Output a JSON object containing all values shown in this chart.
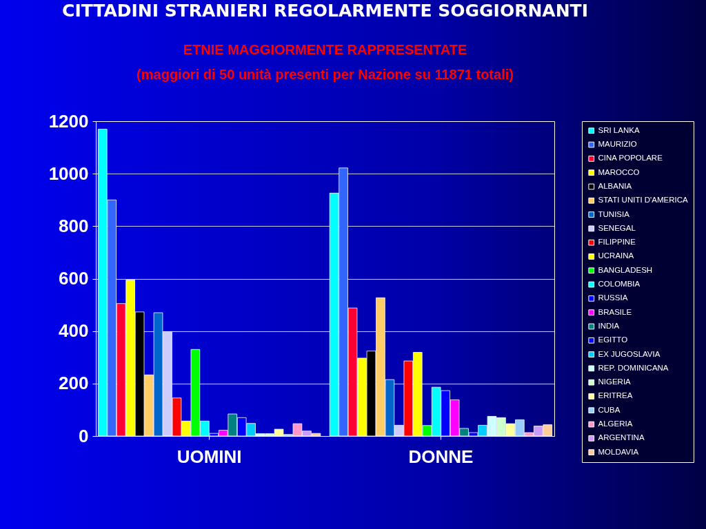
{
  "chart_data": {
    "type": "bar",
    "title": "CITTADINI STRANIERI REGOLARMENTE SOGGIORNANTI",
    "subtitle": "ETNIE MAGGIORMENTE RAPPRESENTATE",
    "annotations": [
      "(maggiori di 50 unità presenti per Nazione su 11871 totali)"
    ],
    "categories": [
      "UOMINI",
      "DONNE"
    ],
    "ylim": [
      0,
      1200
    ],
    "yticks": [
      0,
      200,
      400,
      600,
      800,
      1000,
      1200
    ],
    "grid": "y",
    "legend": "right",
    "series": [
      {
        "name": "SRI LANKA",
        "color": "#00ffff",
        "values": [
          1170,
          926
        ]
      },
      {
        "name": "MAURIZIO",
        "color": "#3366ff",
        "values": [
          900,
          1022
        ]
      },
      {
        "name": "CINA POPOLARE",
        "color": "#ff0033",
        "values": [
          505,
          488
        ]
      },
      {
        "name": "MAROCCO",
        "color": "#ffff00",
        "values": [
          595,
          297
        ]
      },
      {
        "name": "ALBANIA",
        "color": "#000000",
        "values": [
          473,
          324
        ]
      },
      {
        "name": "STATI UNITI D'AMERICA",
        "color": "#ffcc66",
        "values": [
          233,
          527
        ]
      },
      {
        "name": "TUNISIA",
        "color": "#0066cc",
        "values": [
          470,
          215
        ]
      },
      {
        "name": "SENEGAL",
        "color": "#ccccff",
        "values": [
          398,
          41
        ]
      },
      {
        "name": "FILIPPINE",
        "color": "#ff0000",
        "values": [
          145,
          286
        ]
      },
      {
        "name": "UCRAINA",
        "color": "#ffff00",
        "values": [
          57,
          319
        ]
      },
      {
        "name": "BANGLADESH",
        "color": "#00ff00",
        "values": [
          330,
          40
        ]
      },
      {
        "name": "COLOMBIA",
        "color": "#00ffff",
        "values": [
          57,
          186
        ]
      },
      {
        "name": "RUSSIA",
        "color": "#0000ff",
        "values": [
          10,
          173
        ]
      },
      {
        "name": "BRASILE",
        "color": "#ff00ff",
        "values": [
          22,
          138
        ]
      },
      {
        "name": "INDIA",
        "color": "#008080",
        "values": [
          84,
          29
        ]
      },
      {
        "name": "EGITTO",
        "color": "#0000ff",
        "values": [
          70,
          13
        ]
      },
      {
        "name": "EX JUGOSLAVIA",
        "color": "#00ccff",
        "values": [
          48,
          41
        ]
      },
      {
        "name": "REP. DOMINICANA",
        "color": "#ccffff",
        "values": [
          9,
          75
        ]
      },
      {
        "name": "NIGERIA",
        "color": "#ccffcc",
        "values": [
          9,
          70
        ]
      },
      {
        "name": "ERITREA",
        "color": "#ffff99",
        "values": [
          26,
          47
        ]
      },
      {
        "name": "CUBA",
        "color": "#99ccff",
        "values": [
          6,
          62
        ]
      },
      {
        "name": "ALGERIA",
        "color": "#ff99cc",
        "values": [
          47,
          13
        ]
      },
      {
        "name": "ARGENTINA",
        "color": "#cc99ff",
        "values": [
          19,
          38
        ]
      },
      {
        "name": "MOLDAVIA",
        "color": "#ffcc99",
        "values": [
          10,
          43
        ]
      }
    ]
  }
}
